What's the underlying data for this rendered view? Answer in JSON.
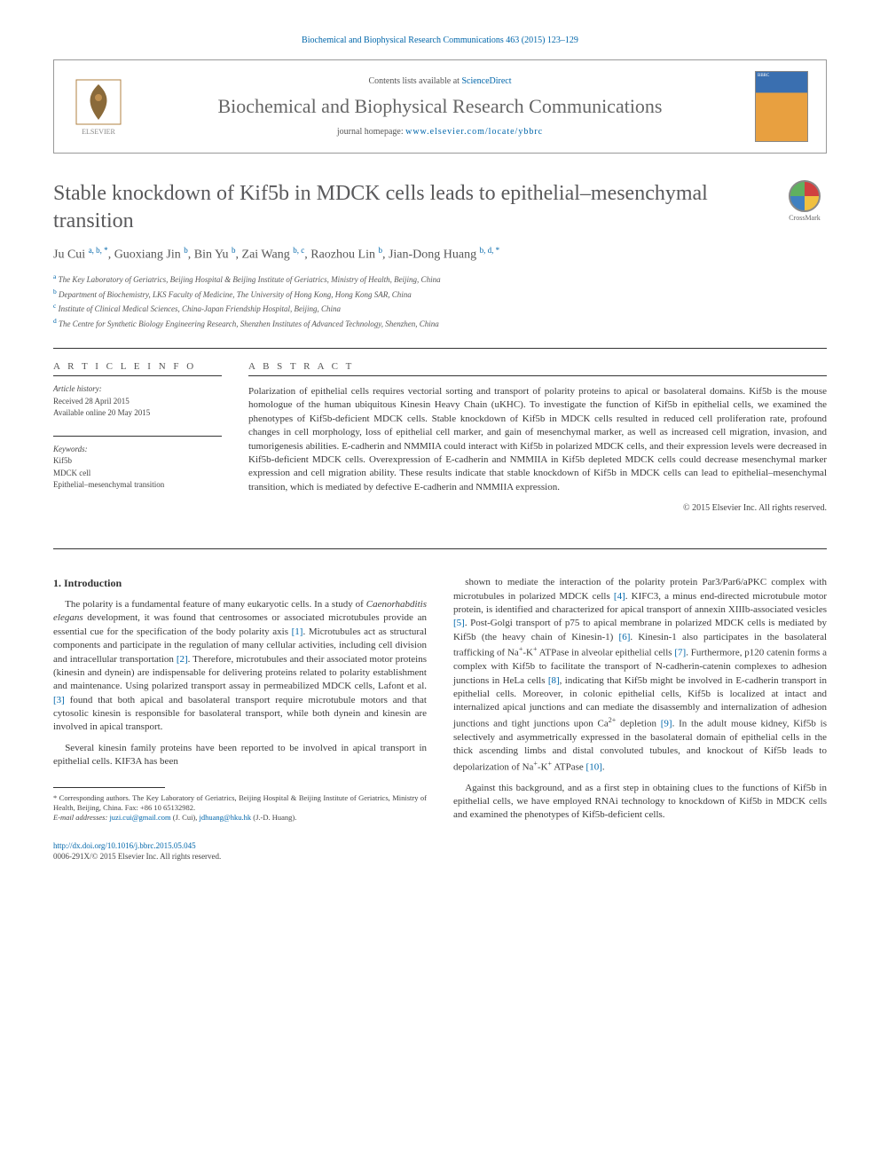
{
  "header": {
    "citation": "Biochemical and Biophysical Research Communications 463 (2015) 123–129",
    "contents_available": "Contents lists available at ",
    "sciencedirect": "ScienceDirect",
    "journal_name": "Biochemical and Biophysical Research Communications",
    "homepage_label": "journal homepage: ",
    "homepage_url": "www.elsevier.com/locate/ybbrc",
    "cover_label": "BBRC"
  },
  "crossmark": {
    "label": "CrossMark"
  },
  "article": {
    "title": "Stable knockdown of Kif5b in MDCK cells leads to epithelial–mesenchymal transition",
    "authors_html": "Ju Cui <sup>a, b, *</sup>, Guoxiang Jin <sup>b</sup>, Bin Yu <sup>b</sup>, Zai Wang <sup>b, c</sup>, Raozhou Lin <sup>b</sup>, Jian-Dong Huang <sup>b, d, *</sup>",
    "affiliations": [
      {
        "sup": "a",
        "text": "The Key Laboratory of Geriatrics, Beijing Hospital & Beijing Institute of Geriatrics, Ministry of Health, Beijing, China"
      },
      {
        "sup": "b",
        "text": "Department of Biochemistry, LKS Faculty of Medicine, The University of Hong Kong, Hong Kong SAR, China"
      },
      {
        "sup": "c",
        "text": "Institute of Clinical Medical Sciences, China-Japan Friendship Hospital, Beijing, China"
      },
      {
        "sup": "d",
        "text": "The Centre for Synthetic Biology Engineering Research, Shenzhen Institutes of Advanced Technology, Shenzhen, China"
      }
    ]
  },
  "info": {
    "article_info_heading": "A R T I C L E   I N F O",
    "history_label": "Article history:",
    "received": "Received 28 April 2015",
    "available": "Available online 20 May 2015",
    "keywords_label": "Keywords:",
    "keywords": [
      "Kif5b",
      "MDCK cell",
      "Epithelial–mesenchymal transition"
    ]
  },
  "abstract": {
    "heading": "A B S T R A C T",
    "text": "Polarization of epithelial cells requires vectorial sorting and transport of polarity proteins to apical or basolateral domains. Kif5b is the mouse homologue of the human ubiquitous Kinesin Heavy Chain (uKHC). To investigate the function of Kif5b in epithelial cells, we examined the phenotypes of Kif5b-deficient MDCK cells. Stable knockdown of Kif5b in MDCK cells resulted in reduced cell proliferation rate, profound changes in cell morphology, loss of epithelial cell marker, and gain of mesenchymal marker, as well as increased cell migration, invasion, and tumorigenesis abilities. E-cadherin and NMMIIA could interact with Kif5b in polarized MDCK cells, and their expression levels were decreased in Kif5b-deficient MDCK cells. Overexpression of E-cadherin and NMMIIA in Kif5b depleted MDCK cells could decrease mesenchymal marker expression and cell migration ability. These results indicate that stable knockdown of Kif5b in MDCK cells can lead to epithelial–mesenchymal transition, which is mediated by defective E-cadherin and NMMIIA expression.",
    "copyright": "© 2015 Elsevier Inc. All rights reserved."
  },
  "body": {
    "section1_heading": "1. Introduction",
    "col_left": [
      "The polarity is a fundamental feature of many eukaryotic cells. In a study of <em>Caenorhabditis elegans</em> development, it was found that centrosomes or associated microtubules provide an essential cue for the specification of the body polarity axis <a href=\"#\">[1]</a>. Microtubules act as structural components and participate in the regulation of many cellular activities, including cell division and intracellular transportation <a href=\"#\">[2]</a>. Therefore, microtubules and their associated motor proteins (kinesin and dynein) are indispensable for delivering proteins related to polarity establishment and maintenance. Using polarized transport assay in permeabilized MDCK cells, Lafont et al. <a href=\"#\">[3]</a> found that both apical and basolateral transport require microtubule motors and that cytosolic kinesin is responsible for basolateral transport, while both dynein and kinesin are involved in apical transport.",
      "Several kinesin family proteins have been reported to be involved in apical transport in epithelial cells. KIF3A has been"
    ],
    "col_right": [
      "shown to mediate the interaction of the polarity protein Par3/Par6/aPKC complex with microtubules in polarized MDCK cells <a href=\"#\">[4]</a>. KIFC3, a minus end-directed microtubule motor protein, is identified and characterized for apical transport of annexin XIIIb-associated vesicles <a href=\"#\">[5]</a>. Post-Golgi transport of p75 to apical membrane in polarized MDCK cells is mediated by Kif5b (the heavy chain of Kinesin-1) <a href=\"#\">[6]</a>. Kinesin-1 also participates in the basolateral trafficking of Na<sup>+</sup>-K<sup>+</sup> ATPase in alveolar epithelial cells <a href=\"#\">[7]</a>. Furthermore, p120 catenin forms a complex with Kif5b to facilitate the transport of N-cadherin-catenin complexes to adhesion junctions in HeLa cells <a href=\"#\">[8]</a>, indicating that Kif5b might be involved in E-cadherin transport in epithelial cells. Moreover, in colonic epithelial cells, Kif5b is localized at intact and internalized apical junctions and can mediate the disassembly and internalization of adhesion junctions and tight junctions upon Ca<sup>2+</sup> depletion <a href=\"#\">[9]</a>. In the adult mouse kidney, Kif5b is selectively and asymmetrically expressed in the basolateral domain of epithelial cells in the thick ascending limbs and distal convoluted tubules, and knockout of Kif5b leads to depolarization of Na<sup>+</sup>-K<sup>+</sup> ATPase <a href=\"#\">[10]</a>.",
      "Against this background, and as a first step in obtaining clues to the functions of Kif5b in epithelial cells, we have employed RNAi technology to knockdown of Kif5b in MDCK cells and examined the phenotypes of Kif5b-deficient cells."
    ]
  },
  "footnote": {
    "text": "* Corresponding authors. The Key Laboratory of Geriatrics, Beijing Hospital & Beijing Institute of Geriatrics, Ministry of Health, Beijing, China. Fax: +86 10 65132982.",
    "emails_label": "E-mail addresses: ",
    "email1": "juzi.cui@gmail.com",
    "email1_name": "(J. Cui), ",
    "email2": "jdhuang@hku.hk",
    "email2_name": "(J.-D. Huang)."
  },
  "footer": {
    "doi": "http://dx.doi.org/10.1016/j.bbrc.2015.05.045",
    "issn_line": "0006-291X/© 2015 Elsevier Inc. All rights reserved."
  },
  "colors": {
    "link": "#0066aa",
    "text": "#3a3a3a",
    "heading_gray": "#59595b"
  }
}
